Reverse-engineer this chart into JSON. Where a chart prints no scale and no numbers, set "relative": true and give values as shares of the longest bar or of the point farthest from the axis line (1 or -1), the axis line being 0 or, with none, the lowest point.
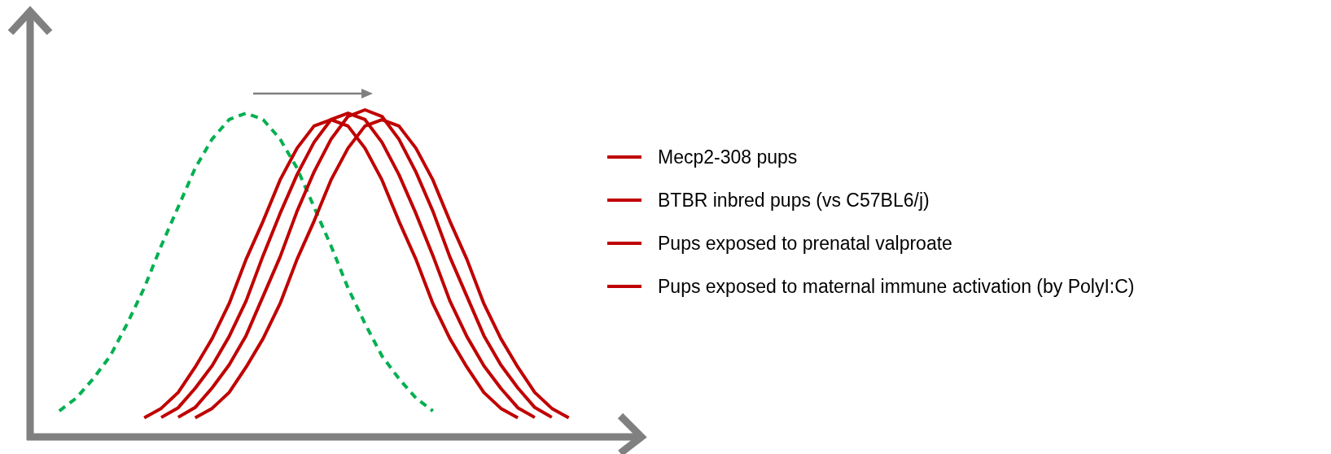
{
  "chart_data": [
    {
      "type": "line",
      "relative": true,
      "categories": [
        null,
        null,
        null,
        null,
        null,
        null,
        null,
        null,
        null,
        null,
        null,
        null,
        null,
        null,
        null,
        null,
        null,
        null,
        null,
        null,
        null,
        null,
        null
      ],
      "series": [
        {
          "color": "#00b050",
          "line_style": "dashed",
          "values": [
            0.08,
            0.12,
            0.18,
            0.25,
            0.35,
            0.46,
            0.59,
            0.71,
            0.83,
            0.92,
            0.98,
            1,
            0.98,
            0.92,
            0.83,
            0.71,
            0.59,
            0.46,
            0.35,
            0.25,
            0.18,
            0.12,
            0.08
          ]
        }
      ]
    },
    {
      "type": "line",
      "relative": true,
      "legend": "right",
      "categories": [
        null,
        null,
        null,
        null,
        null,
        null,
        null,
        null,
        null,
        null,
        null,
        null,
        null,
        null,
        null,
        null,
        null,
        null,
        null,
        null,
        null,
        null,
        null
      ],
      "series": [
        {
          "name": "Mecp2-308 pups",
          "color": "#c00000",
          "line_style": "solid",
          "values": [
            0.06,
            0.09,
            0.14,
            0.22,
            0.31,
            0.42,
            0.56,
            0.68,
            0.81,
            0.91,
            0.98,
            1,
            0.98,
            0.91,
            0.81,
            0.68,
            0.56,
            0.42,
            0.31,
            0.22,
            0.14,
            0.09,
            0.06
          ]
        }
      ]
    },
    {
      "type": "line",
      "relative": true,
      "legend": "right",
      "categories": [
        null,
        null,
        null,
        null,
        null,
        null,
        null,
        null,
        null,
        null,
        null,
        null,
        null,
        null,
        null,
        null,
        null,
        null,
        null,
        null,
        null,
        null,
        null
      ],
      "series": [
        {
          "name": "BTBR inbred pups (vs C57BL6/j)",
          "color": "#c00000",
          "line_style": "solid",
          "values": [
            0.06,
            0.09,
            0.15,
            0.22,
            0.31,
            0.42,
            0.56,
            0.69,
            0.81,
            0.91,
            0.98,
            1,
            0.98,
            0.91,
            0.81,
            0.69,
            0.56,
            0.42,
            0.31,
            0.22,
            0.15,
            0.09,
            0.06
          ]
        }
      ]
    },
    {
      "type": "line",
      "relative": true,
      "legend": "right",
      "categories": [
        null,
        null,
        null,
        null,
        null,
        null,
        null,
        null,
        null,
        null,
        null,
        null,
        null,
        null,
        null,
        null,
        null,
        null,
        null,
        null,
        null,
        null,
        null
      ],
      "series": [
        {
          "name": "Pups exposed to prenatal valproate",
          "color": "#c00000",
          "line_style": "solid",
          "values": [
            0.06,
            0.09,
            0.15,
            0.22,
            0.31,
            0.43,
            0.55,
            0.69,
            0.81,
            0.91,
            0.98,
            1,
            0.98,
            0.91,
            0.81,
            0.69,
            0.55,
            0.43,
            0.31,
            0.22,
            0.15,
            0.09,
            0.06
          ]
        }
      ]
    },
    {
      "type": "line",
      "relative": true,
      "legend": "right",
      "categories": [
        null,
        null,
        null,
        null,
        null,
        null,
        null,
        null,
        null,
        null,
        null,
        null,
        null,
        null,
        null,
        null,
        null,
        null,
        null,
        null,
        null,
        null,
        null
      ],
      "series": [
        {
          "name": "Pups exposed to maternal immune activation (by PolyI:C)",
          "color": "#c00000",
          "line_style": "solid",
          "values": [
            0.06,
            0.09,
            0.14,
            0.22,
            0.31,
            0.42,
            0.56,
            0.68,
            0.81,
            0.91,
            0.98,
            1,
            0.98,
            0.91,
            0.81,
            0.68,
            0.56,
            0.42,
            0.31,
            0.22,
            0.14,
            0.09,
            0.06
          ]
        }
      ]
    }
  ]
}
